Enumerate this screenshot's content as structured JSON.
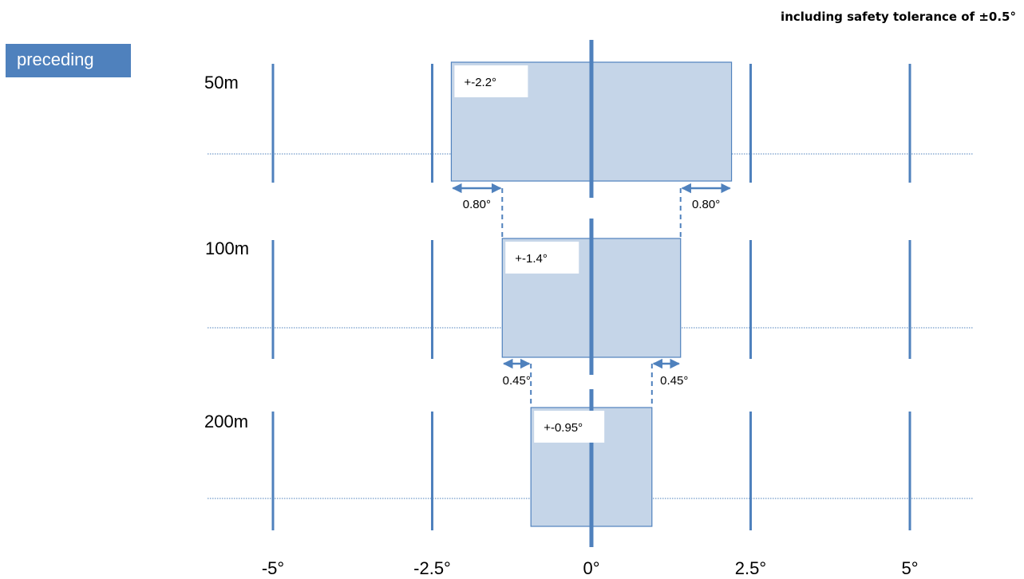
{
  "header": {
    "title": "including safety tolerance of ±0.5°"
  },
  "tag": {
    "label": "preceding"
  },
  "colors": {
    "line": "#4f81bd",
    "box_fill": "#c5d5e8",
    "box_stroke": "#4f81bd"
  },
  "x_axis": {
    "ticks": [
      {
        "value": -5,
        "label": "-5°"
      },
      {
        "value": -2.5,
        "label": "-2.5°"
      },
      {
        "value": 0,
        "label": "0°"
      },
      {
        "value": 2.5,
        "label": "2.5°"
      },
      {
        "value": 5,
        "label": "5°"
      }
    ]
  },
  "rows": [
    {
      "distance": "50m",
      "half_width_deg": 2.2,
      "box_label": "+-2.2°"
    },
    {
      "distance": "100m",
      "half_width_deg": 1.4,
      "box_label": "+-1.4°"
    },
    {
      "distance": "200m",
      "half_width_deg": 0.95,
      "box_label": "+-0.95°"
    }
  ],
  "differences": [
    {
      "label": "0.80°"
    },
    {
      "label": "0.45°"
    }
  ]
}
